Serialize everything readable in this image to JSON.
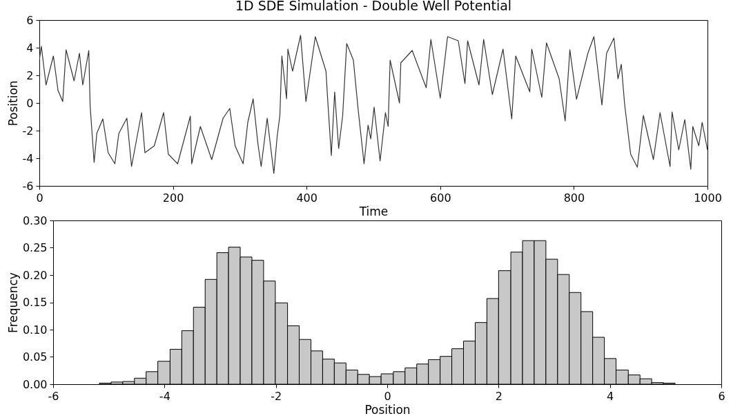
{
  "chart_data": [
    {
      "type": "line",
      "title": "1D SDE Simulation - Double Well Potential",
      "xlabel": "Time",
      "ylabel": "Position",
      "x": [
        0,
        3,
        10,
        21,
        28,
        35,
        40,
        52,
        60,
        65,
        74,
        76,
        82,
        86,
        95,
        103,
        113,
        119,
        131,
        138,
        153,
        158,
        172,
        186,
        193,
        207,
        226,
        228,
        241,
        258,
        275,
        285,
        293,
        305,
        312,
        320,
        327,
        332,
        341,
        351,
        356,
        360,
        363,
        370,
        372,
        379,
        391,
        399,
        413,
        429,
        432,
        437,
        442,
        448,
        454,
        460,
        470,
        477,
        486,
        492,
        496,
        501,
        510,
        518,
        522,
        525,
        539,
        541,
        558,
        579,
        586,
        600,
        611,
        627,
        637,
        641,
        658,
        665,
        678,
        694,
        707,
        713,
        734,
        737,
        752,
        759,
        778,
        787,
        794,
        804,
        821,
        830,
        842,
        849,
        860,
        866,
        871,
        876,
        880,
        885,
        895,
        904,
        919,
        929,
        944,
        947,
        957,
        966,
        975,
        978,
        987,
        992,
        1000
      ],
      "series": [
        {
          "color": "#333333",
          "values": [
            3.1,
            4.1,
            1.3,
            3.4,
            0.9,
            0.1,
            3.85,
            1.6,
            3.6,
            1.3,
            3.8,
            -0.2,
            -4.3,
            -2.2,
            -1.15,
            -3.6,
            -4.4,
            -2.2,
            -1.1,
            -4.6,
            -0.7,
            -3.6,
            -3.1,
            -0.7,
            -3.7,
            -4.4,
            -0.95,
            -4.4,
            -1.7,
            -4.1,
            -1.1,
            -0.4,
            -3.1,
            -4.4,
            -1.4,
            0.3,
            -2.9,
            -4.6,
            -1.1,
            -5.1,
            -2.4,
            -0.9,
            3.4,
            0.3,
            3.9,
            2.3,
            4.9,
            0.1,
            4.8,
            2.3,
            -0.1,
            -3.8,
            0.8,
            -3.3,
            -0.9,
            4.3,
            3.1,
            -0.4,
            -4.4,
            -1.6,
            -2.6,
            -0.3,
            -4.2,
            -0.7,
            -1.7,
            3.1,
            0.0,
            2.9,
            3.8,
            1.1,
            4.6,
            0.35,
            4.8,
            4.5,
            1.4,
            4.5,
            1.3,
            4.6,
            0.6,
            3.9,
            -1.15,
            3.4,
            0.8,
            3.9,
            0.4,
            4.35,
            1.75,
            -1.3,
            3.85,
            0.27,
            3.6,
            4.8,
            -0.15,
            3.6,
            4.7,
            1.75,
            2.8,
            -0.1,
            -1.7,
            -3.7,
            -4.65,
            -0.9,
            -4.1,
            -0.7,
            -4.6,
            -0.65,
            -3.4,
            -1.2,
            -4.8,
            -1.7,
            -3.1,
            -1.4,
            -3.4
          ]
        }
      ],
      "xlim": [
        0,
        1000
      ],
      "xticks": [
        0,
        200,
        400,
        600,
        800,
        1000
      ],
      "ylim": [
        -6,
        6
      ],
      "yticks": [
        -6,
        -4,
        -2,
        0,
        2,
        4,
        6
      ]
    },
    {
      "type": "histogram",
      "xlabel": "Position",
      "ylabel": "Frequency",
      "color": "#c8c8c8",
      "bins": [
        -5.17,
        -4.96,
        -4.75,
        -4.54,
        -4.33,
        -4.12,
        -3.9,
        -3.69,
        -3.48,
        -3.27,
        -3.06,
        -2.85,
        -2.64,
        -2.43,
        -2.22,
        -2.01,
        -1.79,
        -1.58,
        -1.37,
        -1.16,
        -0.95,
        -0.74,
        -0.53,
        -0.32,
        -0.11,
        0.11,
        0.32,
        0.53,
        0.74,
        0.95,
        1.16,
        1.37,
        1.58,
        1.79,
        2,
        2.22,
        2.43,
        2.64,
        2.85,
        3.06,
        3.27,
        3.48,
        3.69,
        3.9,
        4.11,
        4.33,
        4.54,
        4.75,
        4.96,
        5.17
      ],
      "values": [
        0.002,
        0.004,
        0.005,
        0.011,
        0.023,
        0.042,
        0.064,
        0.098,
        0.141,
        0.192,
        0.241,
        0.251,
        0.233,
        0.227,
        0.189,
        0.149,
        0.107,
        0.082,
        0.061,
        0.046,
        0.039,
        0.026,
        0.018,
        0.014,
        0.019,
        0.023,
        0.03,
        0.037,
        0.045,
        0.051,
        0.065,
        0.079,
        0.113,
        0.157,
        0.208,
        0.242,
        0.263,
        0.263,
        0.229,
        0.201,
        0.168,
        0.133,
        0.086,
        0.047,
        0.026,
        0.017,
        0.01,
        0.003,
        0.002
      ],
      "xlim": [
        -6,
        6
      ],
      "xticks": [
        -6,
        -4,
        -2,
        0,
        2,
        4,
        6
      ],
      "ylim": [
        0,
        0.3
      ],
      "yticks": [
        {
          "value": 0,
          "label": "0.00"
        },
        {
          "value": 0.05,
          "label": "0.05"
        },
        {
          "value": 0.1,
          "label": "0.10"
        },
        {
          "value": 0.15,
          "label": "0.15"
        },
        {
          "value": 0.2,
          "label": "0.20"
        },
        {
          "value": 0.25,
          "label": "0.25"
        },
        {
          "value": 0.3,
          "label": "0.30"
        }
      ]
    }
  ]
}
